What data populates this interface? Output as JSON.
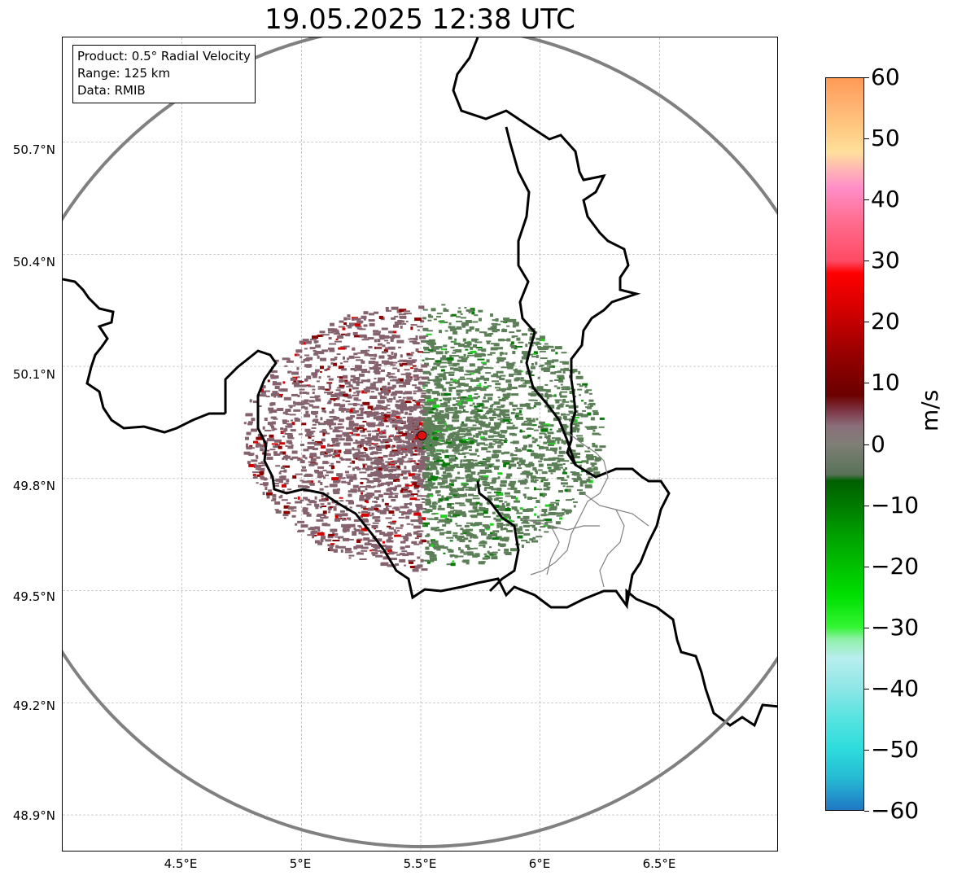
{
  "title": "19.05.2025 12:38 UTC",
  "info": {
    "product": "Product: 0.5° Radial Velocity",
    "range": "Range: 125 km",
    "source": "Data: RMIB"
  },
  "axes": {
    "y_ticks": [
      "50.7°N",
      "50.4°N",
      "50.1°N",
      "49.8°N",
      "49.5°N",
      "49.2°N",
      "48.9°N"
    ],
    "x_ticks": [
      "4.5°E",
      "5°E",
      "5.5°E",
      "6°E",
      "6.5°E"
    ]
  },
  "colorbar": {
    "unit": "m/s",
    "ticks": [
      "60",
      "50",
      "40",
      "30",
      "20",
      "10",
      "0",
      "−10",
      "−20",
      "−30",
      "−40",
      "−50",
      "−60"
    ],
    "stops": [
      {
        "value": -60,
        "color": "#1f77c4"
      },
      {
        "value": -55,
        "color": "#25b8d4"
      },
      {
        "value": -50,
        "color": "#2ddcdc"
      },
      {
        "value": -45,
        "color": "#56e3e0"
      },
      {
        "value": -40,
        "color": "#8fe6e6"
      },
      {
        "value": -35,
        "color": "#b8eeee"
      },
      {
        "value": -32,
        "color": "#8ff0a8"
      },
      {
        "value": -30,
        "color": "#33f533"
      },
      {
        "value": -25,
        "color": "#00e000"
      },
      {
        "value": -20,
        "color": "#00c000"
      },
      {
        "value": -15,
        "color": "#00a000"
      },
      {
        "value": -10,
        "color": "#007a00"
      },
      {
        "value": -6,
        "color": "#005f00"
      },
      {
        "value": -5,
        "color": "#577257"
      },
      {
        "value": 0,
        "color": "#7f7f76"
      },
      {
        "value": 3,
        "color": "#8a6f7a"
      },
      {
        "value": 5,
        "color": "#804050"
      },
      {
        "value": 8,
        "color": "#6b0000"
      },
      {
        "value": 15,
        "color": "#990000"
      },
      {
        "value": 22,
        "color": "#d40000"
      },
      {
        "value": 28,
        "color": "#ff0000"
      },
      {
        "value": 30,
        "color": "#ff4a64"
      },
      {
        "value": 37,
        "color": "#ff6f93"
      },
      {
        "value": 42,
        "color": "#ff8ec8"
      },
      {
        "value": 45,
        "color": "#ffb5b5"
      },
      {
        "value": 48,
        "color": "#ffe09a"
      },
      {
        "value": 52,
        "color": "#ffc880"
      },
      {
        "value": 56,
        "color": "#ffb070"
      },
      {
        "value": 60,
        "color": "#ff9a55"
      }
    ]
  },
  "map": {
    "extent_lon": [
      4.0,
      7.0
    ],
    "extent_lat": [
      48.8,
      50.98
    ],
    "radar_site": {
      "lon": 5.505,
      "lat": 49.915
    },
    "range_ring_km": 125,
    "colors": {
      "ring": "#808080",
      "border": "#000000",
      "subdivision": "#808080",
      "grid": "#b0b0b0",
      "site": "#e01010",
      "approaching": "#5c7f58",
      "receding": "#85636e"
    }
  }
}
